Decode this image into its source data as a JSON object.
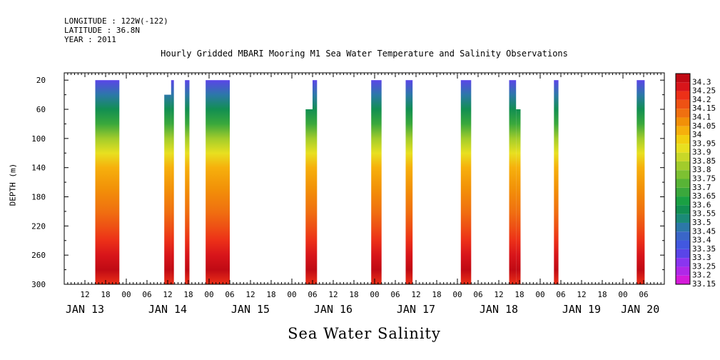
{
  "header": {
    "longitude": "LONGITUDE : 122W(-122)",
    "latitude": "LATITUDE : 36.8N",
    "year": "YEAR : 2011"
  },
  "chart_data": {
    "type": "heatmap",
    "title": "Hourly Gridded MBARI Mooring M1 Sea Water Temperature and Salinity Observations",
    "xlabel": "Sea Water Salinity",
    "ylabel": "DEPTH (m)",
    "x_unit": "hours since JAN 13 00:00, 2011",
    "xlim": [
      6,
      180
    ],
    "ylim": [
      300,
      10
    ],
    "y_ticks": [
      20,
      60,
      100,
      140,
      180,
      220,
      260,
      300
    ],
    "x_hour_ticks": [
      {
        "t": 12,
        "label": "12"
      },
      {
        "t": 18,
        "label": "18"
      },
      {
        "t": 24,
        "label": "00"
      },
      {
        "t": 30,
        "label": "06"
      },
      {
        "t": 36,
        "label": "12"
      },
      {
        "t": 42,
        "label": "18"
      },
      {
        "t": 48,
        "label": "00"
      },
      {
        "t": 54,
        "label": "06"
      },
      {
        "t": 60,
        "label": "12"
      },
      {
        "t": 66,
        "label": "18"
      },
      {
        "t": 72,
        "label": "00"
      },
      {
        "t": 78,
        "label": "06"
      },
      {
        "t": 84,
        "label": "12"
      },
      {
        "t": 90,
        "label": "18"
      },
      {
        "t": 96,
        "label": "00"
      },
      {
        "t": 102,
        "label": "06"
      },
      {
        "t": 108,
        "label": "12"
      },
      {
        "t": 114,
        "label": "18"
      },
      {
        "t": 120,
        "label": "00"
      },
      {
        "t": 126,
        "label": "06"
      },
      {
        "t": 132,
        "label": "12"
      },
      {
        "t": 138,
        "label": "18"
      },
      {
        "t": 144,
        "label": "00"
      },
      {
        "t": 150,
        "label": "06"
      },
      {
        "t": 156,
        "label": "12"
      },
      {
        "t": 162,
        "label": "18"
      },
      {
        "t": 168,
        "label": "00"
      },
      {
        "t": 174,
        "label": "06"
      }
    ],
    "x_day_labels": [
      {
        "t": 12,
        "label": "JAN 13"
      },
      {
        "t": 36,
        "label": "JAN 14"
      },
      {
        "t": 60,
        "label": "JAN 15"
      },
      {
        "t": 84,
        "label": "JAN 16"
      },
      {
        "t": 108,
        "label": "JAN 17"
      },
      {
        "t": 132,
        "label": "JAN 18"
      },
      {
        "t": 156,
        "label": "JAN 19"
      },
      {
        "t": 173,
        "label": "JAN 20"
      }
    ],
    "levels": [
      "33.15",
      "33.2",
      "33.25",
      "33.3",
      "33.35",
      "33.4",
      "33.45",
      "33.5",
      "33.55",
      "33.6",
      "33.65",
      "33.7",
      "33.75",
      "33.8",
      "33.85",
      "33.9",
      "33.95",
      "34",
      "34.05",
      "34.1",
      "34.15",
      "34.2",
      "34.25",
      "34.3"
    ],
    "colors": [
      "#d51bd9",
      "#b028e8",
      "#8a35f0",
      "#5a45e8",
      "#4258e0",
      "#3a66c8",
      "#2c78a8",
      "#1b8a78",
      "#128f52",
      "#1aa043",
      "#3aa83c",
      "#58b436",
      "#7dc132",
      "#a2cc2b",
      "#c8d828",
      "#e8e020",
      "#f2cf10",
      "#f6b00c",
      "#f29008",
      "#f07010",
      "#ee5214",
      "#ec3018",
      "#d8151a",
      "#c00a14"
    ],
    "profiles": [
      {
        "depth": 20,
        "salinity": 33.3
      },
      {
        "depth": 40,
        "salinity": 33.45
      },
      {
        "depth": 60,
        "salinity": 33.55
      },
      {
        "depth": 80,
        "salinity": 33.65
      },
      {
        "depth": 100,
        "salinity": 33.8
      },
      {
        "depth": 120,
        "salinity": 33.9
      },
      {
        "depth": 140,
        "salinity": 34.0
      },
      {
        "depth": 170,
        "salinity": 34.05
      },
      {
        "depth": 200,
        "salinity": 34.1
      },
      {
        "depth": 220,
        "salinity": 34.15
      },
      {
        "depth": 240,
        "salinity": 34.2
      },
      {
        "depth": 260,
        "salinity": 34.25
      },
      {
        "depth": 280,
        "salinity": 34.3
      },
      {
        "depth": 300,
        "salinity": 34.2
      }
    ],
    "segments": [
      {
        "t0": 15,
        "t1": 22,
        "top": 20
      },
      {
        "t0": 35,
        "t1": 37,
        "top": 40
      },
      {
        "t0": 37,
        "t1": 37.8,
        "top": 20
      },
      {
        "t0": 41,
        "t1": 42.3,
        "top": 20
      },
      {
        "t0": 47,
        "t1": 54,
        "top": 20
      },
      {
        "t0": 76,
        "t1": 78,
        "top": 60
      },
      {
        "t0": 78,
        "t1": 79.3,
        "top": 20
      },
      {
        "t0": 95,
        "t1": 98,
        "top": 20
      },
      {
        "t0": 105,
        "t1": 107,
        "top": 20
      },
      {
        "t0": 121,
        "t1": 124,
        "top": 20
      },
      {
        "t0": 135,
        "t1": 137,
        "top": 20
      },
      {
        "t0": 137,
        "t1": 138.3,
        "top": 60
      },
      {
        "t0": 148,
        "t1": 149.3,
        "top": 20
      },
      {
        "t0": 172,
        "t1": 174.3,
        "top": 20
      }
    ]
  }
}
